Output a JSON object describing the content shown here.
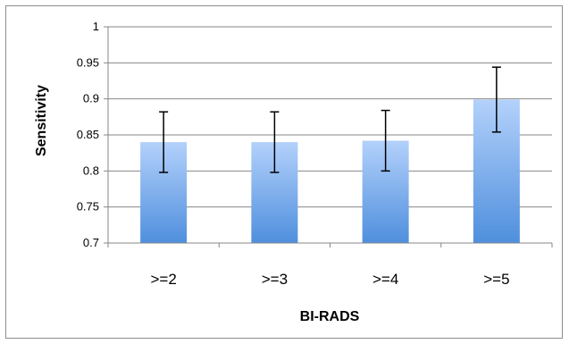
{
  "chart_data": {
    "type": "bar",
    "title": "",
    "xlabel": "BI-RADS",
    "ylabel": "Sensitivity",
    "categories": [
      ">=2",
      ">=3",
      ">=4",
      ">=5"
    ],
    "values": [
      0.84,
      0.84,
      0.842,
      0.899
    ],
    "error_lower": [
      0.798,
      0.798,
      0.8,
      0.854
    ],
    "error_upper": [
      0.882,
      0.882,
      0.884,
      0.944
    ],
    "ylim": [
      0.7,
      1
    ],
    "yticks": [
      0.7,
      0.75,
      0.8,
      0.85,
      0.9,
      0.95,
      1
    ],
    "ytick_labels": [
      "0.7",
      "0.75",
      "0.8",
      "0.85",
      "0.9",
      "0.95",
      "1"
    ],
    "grid": true,
    "legend": "none",
    "colors": {
      "bar_top": "#b3d1fb",
      "bar_bottom": "#4f8fdd",
      "grid": "#878787",
      "axis": "#878787",
      "error_bar": "#000000"
    }
  }
}
